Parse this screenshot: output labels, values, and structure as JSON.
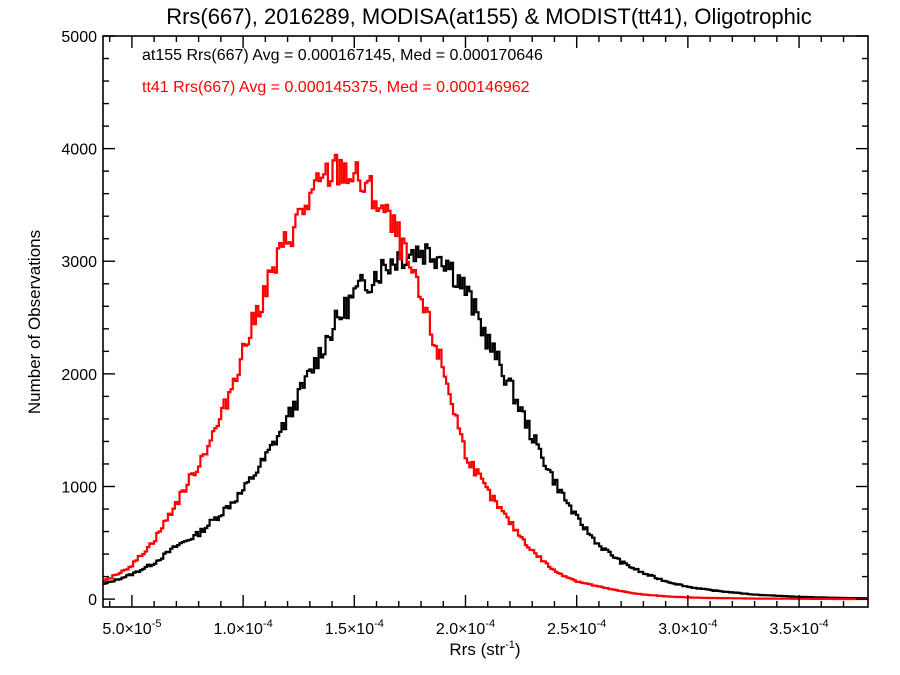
{
  "chart_data": {
    "type": "histogram-step",
    "title": "Rrs(667), 2016289, MODISA(at155) & MODIST(tt41), Oligotrophic",
    "xlabel_main": "Rrs (str",
    "xlabel_sup": "-1",
    "xlabel_close": ")",
    "ylabel": "Number of Observations",
    "xlim": [
      3.7e-05,
      0.000381
    ],
    "ylim": [
      -70,
      5000
    ],
    "x_ticks": [
      {
        "value": 5e-05,
        "mantissa": "5.0",
        "exponent": "-5"
      },
      {
        "value": 0.0001,
        "mantissa": "1.0",
        "exponent": "-4"
      },
      {
        "value": 0.00015,
        "mantissa": "1.5",
        "exponent": "-4"
      },
      {
        "value": 0.0002,
        "mantissa": "2.0",
        "exponent": "-4"
      },
      {
        "value": 0.00025,
        "mantissa": "2.5",
        "exponent": "-4"
      },
      {
        "value": 0.0003,
        "mantissa": "3.0",
        "exponent": "-4"
      },
      {
        "value": 0.00035,
        "mantissa": "3.5",
        "exponent": "-4"
      }
    ],
    "y_ticks": [
      0,
      1000,
      2000,
      3000,
      4000,
      5000
    ],
    "annotations": [
      {
        "text": "at155 Rrs(667) Avg = 0.000167145, Med = 0.000170646",
        "color": "#000000"
      },
      {
        "text": "tt41 Rrs(667) Avg = 0.000145375, Med = 0.000146962",
        "color": "#ff0000"
      }
    ],
    "series": [
      {
        "color": "#000000",
        "x": [
          3.7e-05,
          5e-05,
          6e-05,
          7e-05,
          8e-05,
          9e-05,
          0.0001,
          0.00011,
          0.00012,
          0.00013,
          0.00014,
          0.00015,
          0.00016,
          0.00017,
          0.00018,
          0.00019,
          0.0002,
          0.00021,
          0.00022,
          0.00023,
          0.00024,
          0.00025,
          0.00026,
          0.00027,
          0.00028,
          0.00029,
          0.0003,
          0.00031,
          0.00032,
          0.00033,
          0.00034,
          0.00035,
          0.00036,
          0.00037,
          0.00038
        ],
        "y": [
          130,
          220,
          320,
          470,
          580,
          760,
          960,
          1250,
          1600,
          2000,
          2400,
          2700,
          2900,
          3050,
          3100,
          3050,
          2750,
          2300,
          1900,
          1450,
          1050,
          720,
          480,
          330,
          230,
          160,
          110,
          80,
          60,
          40,
          30,
          20,
          15,
          10,
          8
        ]
      },
      {
        "color": "#ff0000",
        "x": [
          3.7e-05,
          5e-05,
          6e-05,
          7e-05,
          8e-05,
          9e-05,
          0.0001,
          0.00011,
          0.00012,
          0.00013,
          0.00014,
          0.000145,
          0.00015,
          0.00016,
          0.00017,
          0.00018,
          0.00019,
          0.0002,
          0.00021,
          0.00022,
          0.00023,
          0.00024,
          0.00025,
          0.00026,
          0.00027,
          0.00028,
          0.00029,
          0.0003,
          0.00031,
          0.00032,
          0.00033,
          0.00034,
          0.00035,
          0.00036,
          0.00037,
          0.00038
        ],
        "y": [
          150,
          300,
          520,
          850,
          1200,
          1600,
          2200,
          2750,
          3200,
          3550,
          3800,
          3820,
          3750,
          3550,
          3200,
          2650,
          2050,
          1300,
          950,
          680,
          430,
          250,
          160,
          110,
          70,
          40,
          25,
          15,
          10,
          8,
          5,
          4,
          3,
          2,
          1,
          1
        ]
      }
    ]
  }
}
